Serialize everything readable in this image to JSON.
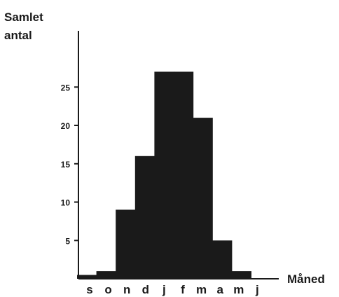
{
  "chart_data": {
    "type": "bar",
    "ylabel_lines": [
      "Samlet",
      "antal"
    ],
    "xlabel": "Måned",
    "categories": [
      "s",
      "o",
      "n",
      "d",
      "j",
      "f",
      "m",
      "a",
      "m",
      "j"
    ],
    "values": [
      0.5,
      1,
      9,
      16,
      27,
      27,
      21,
      5,
      1,
      0
    ],
    "yticks": [
      5,
      10,
      15,
      20,
      25
    ],
    "ylim": [
      0,
      30
    ],
    "grid": false,
    "bar_color": "#1a1a1a"
  }
}
